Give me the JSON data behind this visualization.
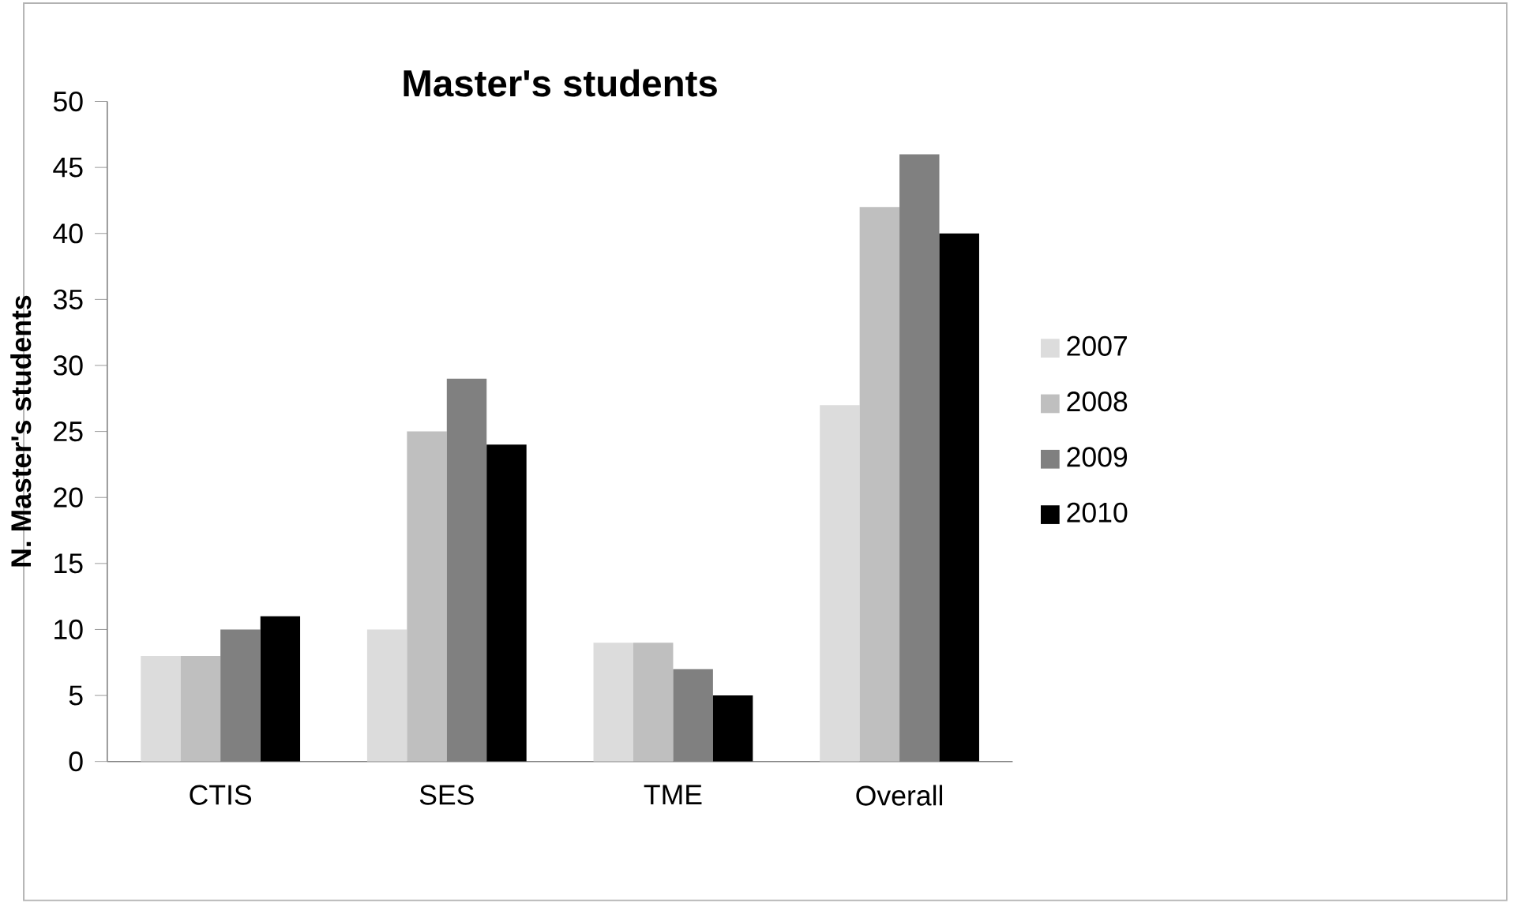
{
  "chart_data": {
    "type": "bar",
    "title": "Master's students",
    "ylabel": "N. Master's students",
    "categories": [
      "CTIS",
      "SES",
      "TME",
      "Overall"
    ],
    "series": [
      {
        "name": "2007",
        "color": "#dcdcdc",
        "values": [
          8,
          10,
          9,
          27
        ]
      },
      {
        "name": "2008",
        "color": "#bfbfbf",
        "values": [
          8,
          25,
          9,
          42
        ]
      },
      {
        "name": "2009",
        "color": "#808080",
        "values": [
          10,
          29,
          7,
          46
        ]
      },
      {
        "name": "2010",
        "color": "#000000",
        "values": [
          11,
          24,
          5,
          40
        ]
      }
    ],
    "ylim": [
      0,
      50
    ],
    "yticks": [
      0,
      5,
      10,
      15,
      20,
      25,
      30,
      35,
      40,
      45,
      50
    ],
    "grid": false,
    "legend": "right"
  }
}
